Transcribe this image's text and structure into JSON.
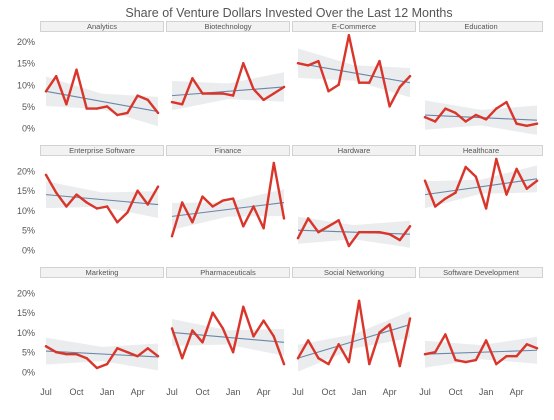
{
  "chart_data": {
    "type": "line",
    "title": "Share of Venture Dollars Invested Over the Last 12 Months",
    "x_tick_labels": [
      "Jul",
      "Oct",
      "Jan",
      "Apr"
    ],
    "y_tick_labels": [
      "0%",
      "5%",
      "10%",
      "15%",
      "20%"
    ],
    "ylim": [
      0,
      22
    ],
    "grid": false,
    "colors": {
      "line": "#d9352b",
      "band": "#e3e5e8",
      "trend": "#6a86a8",
      "panel_header": "#f2f2f2",
      "text": "#555555"
    },
    "panels": [
      {
        "name": "Analytics",
        "values": [
          8.5,
          12,
          5.5,
          13.5,
          4.5,
          4.5,
          5,
          3,
          3.5,
          7.5,
          6.5,
          3.5
        ],
        "trend": [
          8.5,
          3.8
        ]
      },
      {
        "name": "Biotechnology",
        "values": [
          6,
          5.5,
          11.5,
          8,
          8,
          8,
          7.5,
          15,
          9,
          6.5,
          8,
          9.5
        ],
        "trend": [
          7.5,
          9.5
        ]
      },
      {
        "name": "E-Commerce",
        "values": [
          15,
          14.5,
          15.5,
          8.5,
          10,
          21.5,
          10.5,
          10.5,
          15.5,
          5,
          9.5,
          12
        ],
        "trend": [
          15,
          10.5
        ]
      },
      {
        "name": "Education",
        "values": [
          2.5,
          1.5,
          4.5,
          3.5,
          1.5,
          3,
          2,
          4.5,
          6,
          1,
          0.5,
          1
        ],
        "trend": [
          3,
          1.8
        ]
      },
      {
        "name": "Enterprise Software",
        "values": [
          19,
          14.5,
          11,
          14,
          12,
          10.5,
          11,
          7,
          9.5,
          15,
          11.5,
          16
        ],
        "trend": [
          14,
          11.5
        ]
      },
      {
        "name": "Finance",
        "values": [
          3.5,
          12,
          7,
          13.5,
          11,
          12.5,
          13,
          6,
          11,
          5.5,
          22,
          8
        ],
        "trend": [
          8.5,
          12
        ]
      },
      {
        "name": "Hardware",
        "values": [
          3,
          8,
          4.5,
          6,
          7.5,
          1,
          4.5,
          4.5,
          4.5,
          4,
          2.5,
          6
        ],
        "trend": [
          5,
          4
        ]
      },
      {
        "name": "Healthcare",
        "values": [
          17.5,
          11,
          13,
          14.5,
          21,
          18.5,
          10.5,
          23,
          14,
          20.5,
          15.5,
          17.5
        ],
        "trend": [
          14,
          18
        ]
      },
      {
        "name": "Marketing",
        "values": [
          6.5,
          5,
          4.5,
          4.5,
          3.5,
          1,
          2,
          6,
          5,
          4,
          6,
          4
        ],
        "trend": [
          5.3,
          3.8
        ]
      },
      {
        "name": "Pharmaceuticals",
        "values": [
          11,
          3.5,
          10.5,
          7.5,
          15,
          11,
          5,
          16.5,
          9,
          13,
          9,
          2
        ],
        "trend": [
          10,
          7.5
        ]
      },
      {
        "name": "Social Networking",
        "values": [
          3.5,
          8,
          3.5,
          2,
          7,
          2.5,
          18,
          2,
          10,
          12,
          1.5,
          13.5
        ],
        "trend": [
          3.5,
          12
        ]
      },
      {
        "name": "Software Development",
        "values": [
          4.5,
          5,
          9.5,
          3,
          2.5,
          3,
          8,
          2,
          4,
          4,
          7,
          6
        ],
        "trend": [
          4.5,
          5.5
        ]
      }
    ]
  }
}
